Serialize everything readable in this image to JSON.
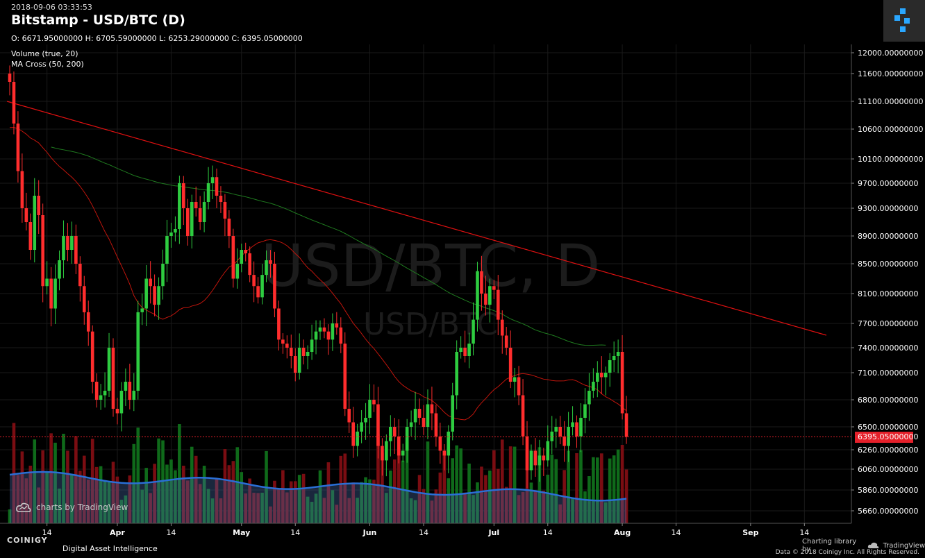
{
  "header": {
    "timestamp": "2018-09-06 03:33:53",
    "title": "Bitstamp - USD/BTC (D)",
    "ohlc": "O: 6671.95000000 H: 6705.59000000 L: 6253.29000000 C: 6395.05000000"
  },
  "indicators": [
    {
      "label": "Volume (true, 20)"
    },
    {
      "label": "MA Cross (50, 200)"
    }
  ],
  "watermark": {
    "big": "USD/BTC, D",
    "small": "USD/BTC"
  },
  "badge": {
    "tradingview": "charts by TradingView"
  },
  "branding": {
    "name": "COINIGY",
    "tagline": "Digital Asset Intelligence",
    "charting": "Charting library by",
    "charting_brand": "TradingView",
    "footer": "Data © 2018  Coinigy Inc. All Rights Reserved."
  },
  "current_price": {
    "label": "6395.05000000",
    "value": 6395.05
  },
  "colors": {
    "up": "#2ecc40",
    "down": "#ff2d2d",
    "ma50": "#c0150c",
    "ma200": "#1f7a1f",
    "trend": "#e01010",
    "vol_ma": "#2a6fd6"
  },
  "chart_data": {
    "type": "candlestick",
    "y_ticks": [
      5660,
      5860,
      6060,
      6260,
      6500,
      6800,
      7100,
      7400,
      7700,
      8100,
      8500,
      8900,
      9300,
      9700,
      10100,
      10600,
      11100,
      11600,
      12000
    ],
    "y_tick_labels": [
      "5660.00000000",
      "5860.00000000",
      "6060.00000000",
      "6260.00000000",
      "6500.00000000",
      "6800.00000000",
      "7100.00000000",
      "7400.00000000",
      "7700.00000000",
      "8100.00000000",
      "8500.00000000",
      "8900.00000000",
      "9300.00000000",
      "9700.00000000",
      "10100.00000000",
      "10600.00000000",
      "11100.00000000",
      "11600.00000000",
      "12000.00000000"
    ],
    "x_labels": [
      {
        "day": 9,
        "label": "14"
      },
      {
        "day": 26,
        "label": "Apr"
      },
      {
        "day": 39,
        "label": "14"
      },
      {
        "day": 56,
        "label": "May"
      },
      {
        "day": 69,
        "label": "14"
      },
      {
        "day": 87,
        "label": "Jun"
      },
      {
        "day": 100,
        "label": "14"
      },
      {
        "day": 117,
        "label": "Jul"
      },
      {
        "day": 130,
        "label": "14"
      },
      {
        "day": 148,
        "label": "Aug"
      },
      {
        "day": 161,
        "label": "14"
      },
      {
        "day": 179,
        "label": "Sep"
      },
      {
        "day": 192,
        "label": "14"
      }
    ],
    "closes": [
      11450,
      10700,
      9900,
      9300,
      9100,
      8700,
      9500,
      9200,
      8200,
      8300,
      7900,
      8300,
      8550,
      8900,
      8700,
      8900,
      8500,
      8200,
      7850,
      7600,
      7000,
      6800,
      6850,
      6900,
      7400,
      6700,
      6650,
      6900,
      7000,
      6800,
      6900,
      7850,
      7900,
      8300,
      8200,
      7950,
      8200,
      8500,
      8900,
      8950,
      9000,
      9700,
      9300,
      8900,
      9400,
      9300,
      9100,
      9400,
      9700,
      9800,
      9500,
      9400,
      9150,
      8900,
      8300,
      8500,
      8700,
      8650,
      8350,
      8200,
      8050,
      8350,
      8550,
      8500,
      7900,
      7500,
      7450,
      7400,
      7300,
      7100,
      7400,
      7300,
      7350,
      7500,
      7600,
      7650,
      7600,
      7500,
      7700,
      7650,
      7450,
      6700,
      6550,
      6300,
      6450,
      6550,
      6600,
      6800,
      6750,
      6300,
      6150,
      6350,
      6500,
      6400,
      6200,
      6250,
      6500,
      6550,
      6700,
      6600,
      6500,
      6750,
      6650,
      6400,
      6250,
      6200,
      6450,
      6850,
      7350,
      7400,
      7300,
      7450,
      7750,
      8400,
      8100,
      7950,
      8200,
      8150,
      7750,
      7550,
      7400,
      7000,
      7050,
      6850,
      6400,
      6050,
      6250,
      6100,
      6200,
      6150,
      6350,
      6450,
      6500,
      6400,
      6300,
      6500,
      6550,
      6400,
      6600,
      6750,
      6900,
      7000,
      7100,
      7050,
      7100,
      7250,
      7300,
      7350,
      6650,
      6395
    ],
    "ma50_start": [
      10300,
      10050,
      9750,
      9450,
      9300,
      9150,
      9000
    ],
    "volume_relative": true
  }
}
